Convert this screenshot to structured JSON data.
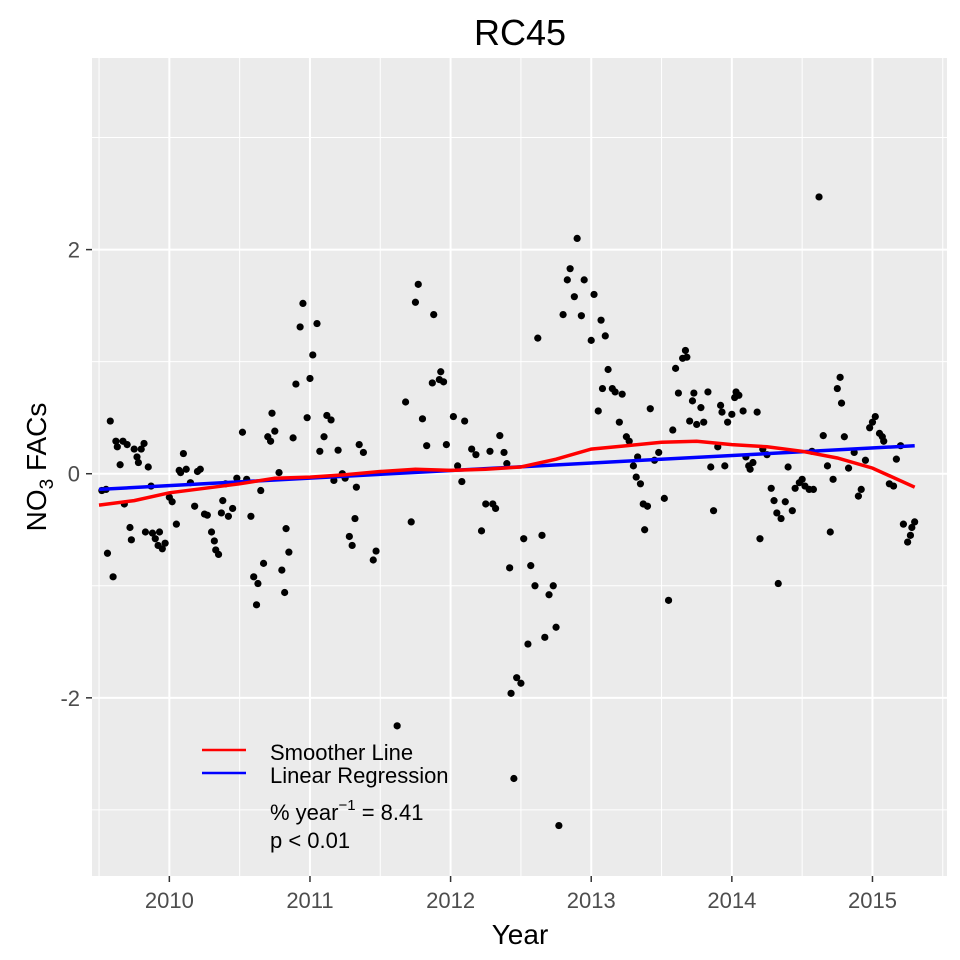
{
  "chart_data": {
    "type": "scatter",
    "title": "RC45",
    "xlabel": "Year",
    "ylabel_main": "NO",
    "ylabel_sub": "3",
    "ylabel_rest": " FACs",
    "xlim": [
      2009.45,
      2015.53
    ],
    "ylim": [
      -3.59,
      3.71
    ],
    "x_ticks": [
      2010,
      2011,
      2012,
      2013,
      2014,
      2015
    ],
    "x_tick_labels": [
      "2010",
      "2011",
      "2012",
      "2013",
      "2014",
      "2015"
    ],
    "y_ticks": [
      -2,
      0,
      2
    ],
    "y_tick_labels": [
      "-2",
      "0",
      "2"
    ],
    "grid": true,
    "legend_position": "bottom-left",
    "legend": {
      "smoother_label": "Smoother Line",
      "regression_label": "Linear Regression",
      "slope_prefix": "% year",
      "slope_exp": "−1",
      "slope_suffix": " = 8.41",
      "p_text": "p < 0.01"
    },
    "colors": {
      "smoother": "#ff0000",
      "regression": "#0000ff",
      "points": "#000000",
      "panel": "#ebebeb",
      "grid": "#ffffff"
    },
    "points": [
      [
        2009.52,
        -0.15
      ],
      [
        2009.55,
        -0.14
      ],
      [
        2009.56,
        -0.71
      ],
      [
        2009.58,
        0.47
      ],
      [
        2009.6,
        -0.92
      ],
      [
        2009.62,
        0.29
      ],
      [
        2009.63,
        0.24
      ],
      [
        2009.65,
        0.08
      ],
      [
        2009.67,
        0.29
      ],
      [
        2009.68,
        -0.27
      ],
      [
        2009.7,
        0.26
      ],
      [
        2009.72,
        -0.48
      ],
      [
        2009.73,
        -0.59
      ],
      [
        2009.75,
        0.22
      ],
      [
        2009.77,
        0.15
      ],
      [
        2009.78,
        0.1
      ],
      [
        2009.8,
        0.22
      ],
      [
        2009.82,
        0.27
      ],
      [
        2009.83,
        -0.52
      ],
      [
        2009.85,
        0.06
      ],
      [
        2009.87,
        -0.11
      ],
      [
        2009.88,
        -0.53
      ],
      [
        2009.9,
        -0.58
      ],
      [
        2009.92,
        -0.64
      ],
      [
        2009.93,
        -0.52
      ],
      [
        2009.95,
        -0.67
      ],
      [
        2009.97,
        -0.62
      ],
      [
        2010.0,
        -0.21
      ],
      [
        2010.02,
        -0.25
      ],
      [
        2010.05,
        -0.45
      ],
      [
        2010.07,
        0.03
      ],
      [
        2010.08,
        0.01
      ],
      [
        2010.1,
        0.18
      ],
      [
        2010.12,
        0.04
      ],
      [
        2010.15,
        -0.08
      ],
      [
        2010.18,
        -0.29
      ],
      [
        2010.2,
        0.02
      ],
      [
        2010.22,
        0.04
      ],
      [
        2010.25,
        -0.36
      ],
      [
        2010.27,
        -0.37
      ],
      [
        2010.3,
        -0.52
      ],
      [
        2010.32,
        -0.6
      ],
      [
        2010.33,
        -0.68
      ],
      [
        2010.35,
        -0.72
      ],
      [
        2010.37,
        -0.35
      ],
      [
        2010.38,
        -0.24
      ],
      [
        2010.4,
        -0.09
      ],
      [
        2010.42,
        -0.38
      ],
      [
        2010.45,
        -0.31
      ],
      [
        2010.48,
        -0.04
      ],
      [
        2010.52,
        0.37
      ],
      [
        2010.55,
        -0.05
      ],
      [
        2010.58,
        -0.38
      ],
      [
        2010.6,
        -0.92
      ],
      [
        2010.62,
        -1.17
      ],
      [
        2010.63,
        -0.98
      ],
      [
        2010.65,
        -0.15
      ],
      [
        2010.67,
        -0.8
      ],
      [
        2010.7,
        0.33
      ],
      [
        2010.72,
        0.29
      ],
      [
        2010.73,
        0.54
      ],
      [
        2010.75,
        0.38
      ],
      [
        2010.78,
        0.01
      ],
      [
        2010.8,
        -0.86
      ],
      [
        2010.82,
        -1.06
      ],
      [
        2010.83,
        -0.49
      ],
      [
        2010.85,
        -0.7
      ],
      [
        2010.88,
        0.32
      ],
      [
        2010.9,
        0.8
      ],
      [
        2010.93,
        1.31
      ],
      [
        2010.95,
        1.52
      ],
      [
        2010.98,
        0.5
      ],
      [
        2011.0,
        0.85
      ],
      [
        2011.02,
        1.06
      ],
      [
        2011.05,
        1.34
      ],
      [
        2011.07,
        0.2
      ],
      [
        2011.1,
        0.33
      ],
      [
        2011.12,
        0.52
      ],
      [
        2011.15,
        0.48
      ],
      [
        2011.17,
        -0.06
      ],
      [
        2011.2,
        0.21
      ],
      [
        2011.23,
        0.0
      ],
      [
        2011.25,
        -0.04
      ],
      [
        2011.28,
        -0.56
      ],
      [
        2011.3,
        -0.64
      ],
      [
        2011.32,
        -0.4
      ],
      [
        2011.33,
        -0.12
      ],
      [
        2011.35,
        0.26
      ],
      [
        2011.38,
        0.19
      ],
      [
        2011.45,
        -0.77
      ],
      [
        2011.47,
        -0.69
      ],
      [
        2011.62,
        -2.25
      ],
      [
        2011.68,
        0.64
      ],
      [
        2011.72,
        -0.43
      ],
      [
        2011.75,
        1.53
      ],
      [
        2011.77,
        1.69
      ],
      [
        2011.8,
        0.49
      ],
      [
        2011.83,
        0.25
      ],
      [
        2011.87,
        0.81
      ],
      [
        2011.88,
        1.42
      ],
      [
        2011.92,
        0.84
      ],
      [
        2011.93,
        0.91
      ],
      [
        2011.95,
        0.82
      ],
      [
        2011.97,
        0.26
      ],
      [
        2012.02,
        0.51
      ],
      [
        2012.05,
        0.07
      ],
      [
        2012.08,
        -0.07
      ],
      [
        2012.1,
        0.47
      ],
      [
        2012.15,
        0.22
      ],
      [
        2012.18,
        0.17
      ],
      [
        2012.22,
        -0.51
      ],
      [
        2012.25,
        -0.27
      ],
      [
        2012.28,
        0.2
      ],
      [
        2012.3,
        -0.27
      ],
      [
        2012.32,
        -0.31
      ],
      [
        2012.35,
        0.34
      ],
      [
        2012.38,
        0.19
      ],
      [
        2012.4,
        0.09
      ],
      [
        2012.42,
        -0.84
      ],
      [
        2012.43,
        -1.96
      ],
      [
        2012.45,
        -2.72
      ],
      [
        2012.47,
        -1.82
      ],
      [
        2012.5,
        -1.87
      ],
      [
        2012.52,
        -0.58
      ],
      [
        2012.55,
        -1.52
      ],
      [
        2012.57,
        -0.82
      ],
      [
        2012.6,
        -1.0
      ],
      [
        2012.62,
        1.21
      ],
      [
        2012.65,
        -0.55
      ],
      [
        2012.67,
        -1.46
      ],
      [
        2012.7,
        -1.08
      ],
      [
        2012.73,
        -1.0
      ],
      [
        2012.75,
        -1.37
      ],
      [
        2012.77,
        -3.14
      ],
      [
        2012.8,
        1.42
      ],
      [
        2012.83,
        1.73
      ],
      [
        2012.85,
        1.83
      ],
      [
        2012.88,
        1.58
      ],
      [
        2012.9,
        2.1
      ],
      [
        2012.93,
        1.41
      ],
      [
        2012.95,
        1.73
      ],
      [
        2013.0,
        1.19
      ],
      [
        2013.02,
        1.6
      ],
      [
        2013.05,
        0.56
      ],
      [
        2013.07,
        1.37
      ],
      [
        2013.08,
        0.76
      ],
      [
        2013.1,
        1.23
      ],
      [
        2013.12,
        0.93
      ],
      [
        2013.15,
        0.76
      ],
      [
        2013.17,
        0.73
      ],
      [
        2013.2,
        0.46
      ],
      [
        2013.22,
        0.71
      ],
      [
        2013.25,
        0.33
      ],
      [
        2013.27,
        0.29
      ],
      [
        2013.3,
        0.07
      ],
      [
        2013.32,
        -0.03
      ],
      [
        2013.33,
        0.15
      ],
      [
        2013.35,
        -0.09
      ],
      [
        2013.37,
        -0.27
      ],
      [
        2013.38,
        -0.5
      ],
      [
        2013.4,
        -0.29
      ],
      [
        2013.42,
        0.58
      ],
      [
        2013.45,
        0.12
      ],
      [
        2013.48,
        0.19
      ],
      [
        2013.52,
        -0.22
      ],
      [
        2013.55,
        -1.13
      ],
      [
        2013.58,
        0.39
      ],
      [
        2013.6,
        0.94
      ],
      [
        2013.62,
        0.72
      ],
      [
        2013.65,
        1.03
      ],
      [
        2013.67,
        1.1
      ],
      [
        2013.68,
        1.04
      ],
      [
        2013.7,
        0.47
      ],
      [
        2013.72,
        0.65
      ],
      [
        2013.73,
        0.72
      ],
      [
        2013.75,
        0.44
      ],
      [
        2013.78,
        0.59
      ],
      [
        2013.8,
        0.46
      ],
      [
        2013.83,
        0.73
      ],
      [
        2013.85,
        0.06
      ],
      [
        2013.87,
        -0.33
      ],
      [
        2013.9,
        0.24
      ],
      [
        2013.92,
        0.61
      ],
      [
        2013.93,
        0.55
      ],
      [
        2013.95,
        0.07
      ],
      [
        2013.97,
        0.46
      ],
      [
        2014.0,
        0.53
      ],
      [
        2014.02,
        0.68
      ],
      [
        2014.03,
        0.73
      ],
      [
        2014.05,
        0.7
      ],
      [
        2014.08,
        0.56
      ],
      [
        2014.1,
        0.15
      ],
      [
        2014.12,
        0.07
      ],
      [
        2014.13,
        0.04
      ],
      [
        2014.15,
        0.1
      ],
      [
        2014.18,
        0.55
      ],
      [
        2014.2,
        -0.58
      ],
      [
        2014.22,
        0.22
      ],
      [
        2014.25,
        0.17
      ],
      [
        2014.28,
        -0.13
      ],
      [
        2014.3,
        -0.24
      ],
      [
        2014.32,
        -0.35
      ],
      [
        2014.33,
        -0.98
      ],
      [
        2014.35,
        -0.4
      ],
      [
        2014.38,
        -0.25
      ],
      [
        2014.4,
        0.06
      ],
      [
        2014.43,
        -0.33
      ],
      [
        2014.45,
        -0.13
      ],
      [
        2014.48,
        -0.08
      ],
      [
        2014.5,
        -0.05
      ],
      [
        2014.52,
        -0.11
      ],
      [
        2014.55,
        -0.14
      ],
      [
        2014.57,
        0.2
      ],
      [
        2014.58,
        -0.14
      ],
      [
        2014.62,
        2.47
      ],
      [
        2014.65,
        0.34
      ],
      [
        2014.68,
        0.07
      ],
      [
        2014.7,
        -0.52
      ],
      [
        2014.72,
        -0.05
      ],
      [
        2014.75,
        0.76
      ],
      [
        2014.77,
        0.86
      ],
      [
        2014.78,
        0.63
      ],
      [
        2014.8,
        0.33
      ],
      [
        2014.83,
        0.05
      ],
      [
        2014.87,
        0.19
      ],
      [
        2014.9,
        -0.2
      ],
      [
        2014.92,
        -0.14
      ],
      [
        2014.95,
        0.12
      ],
      [
        2014.98,
        0.41
      ],
      [
        2015.0,
        0.46
      ],
      [
        2015.02,
        0.51
      ],
      [
        2015.05,
        0.36
      ],
      [
        2015.07,
        0.33
      ],
      [
        2015.08,
        0.29
      ],
      [
        2015.12,
        -0.09
      ],
      [
        2015.15,
        -0.11
      ],
      [
        2015.17,
        0.13
      ],
      [
        2015.2,
        0.25
      ],
      [
        2015.22,
        -0.45
      ],
      [
        2015.25,
        -0.61
      ],
      [
        2015.27,
        -0.55
      ],
      [
        2015.28,
        -0.48
      ],
      [
        2015.3,
        -0.43
      ]
    ],
    "smoother_line": [
      [
        2009.5,
        -0.28
      ],
      [
        2009.75,
        -0.24
      ],
      [
        2010.0,
        -0.17
      ],
      [
        2010.25,
        -0.13
      ],
      [
        2010.5,
        -0.09
      ],
      [
        2010.75,
        -0.04
      ],
      [
        2011.0,
        -0.03
      ],
      [
        2011.25,
        -0.01
      ],
      [
        2011.5,
        0.02
      ],
      [
        2011.75,
        0.04
      ],
      [
        2012.0,
        0.03
      ],
      [
        2012.25,
        0.04
      ],
      [
        2012.5,
        0.06
      ],
      [
        2012.75,
        0.13
      ],
      [
        2013.0,
        0.22
      ],
      [
        2013.25,
        0.25
      ],
      [
        2013.5,
        0.28
      ],
      [
        2013.75,
        0.29
      ],
      [
        2014.0,
        0.26
      ],
      [
        2014.25,
        0.24
      ],
      [
        2014.5,
        0.2
      ],
      [
        2014.75,
        0.14
      ],
      [
        2015.0,
        0.05
      ],
      [
        2015.3,
        -0.12
      ]
    ],
    "regression_line": [
      [
        2009.5,
        -0.14
      ],
      [
        2015.3,
        0.25
      ]
    ]
  }
}
